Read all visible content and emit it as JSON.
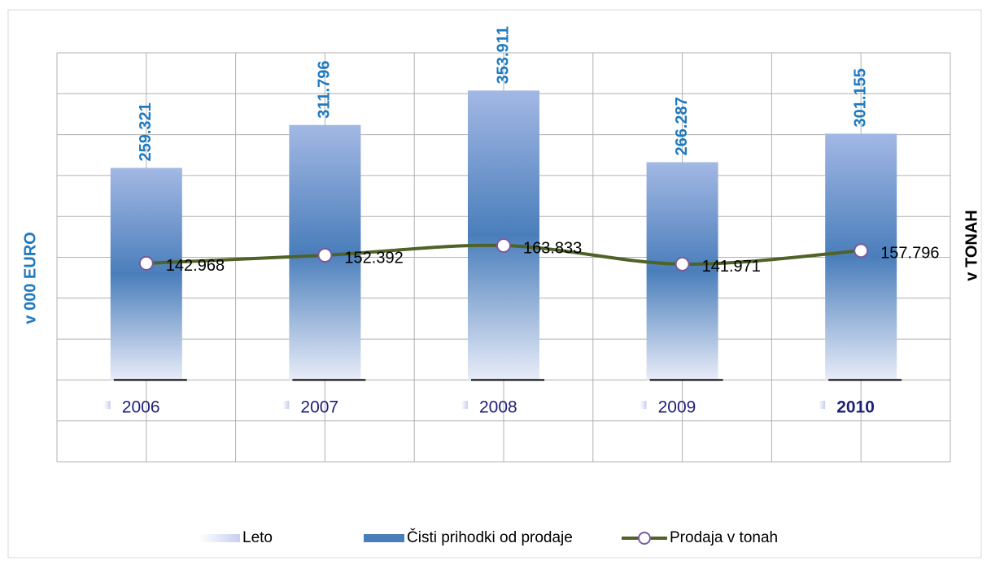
{
  "chart_data": {
    "type": "combo",
    "categories": [
      "2006",
      "2007",
      "2008",
      "2009",
      "2010"
    ],
    "x_label": "Leto",
    "y_label": "v 000 EURO",
    "y2_label": "v TONAH",
    "ylim": [
      -100000,
      400000
    ],
    "y2lim": [
      -90000,
      390000
    ],
    "grid": true,
    "legend": "bottom",
    "series": [
      {
        "name": "Čisti prihodki od prodaje",
        "type": "bar",
        "color": "#4a7ebb",
        "values": [
          259321,
          311796,
          353911,
          266287,
          301155
        ],
        "value_labels": [
          "259.321",
          "311.796",
          "353.911",
          "266.287",
          "301.155"
        ]
      },
      {
        "name": "Prodaja v tonah",
        "type": "line",
        "color": "#4f6228",
        "axis": "y2",
        "values": [
          142968,
          152392,
          163833,
          141971,
          157796
        ],
        "value_labels": [
          "142.968",
          "152.392",
          "163.833",
          "141.971",
          "157.796"
        ]
      }
    ]
  }
}
